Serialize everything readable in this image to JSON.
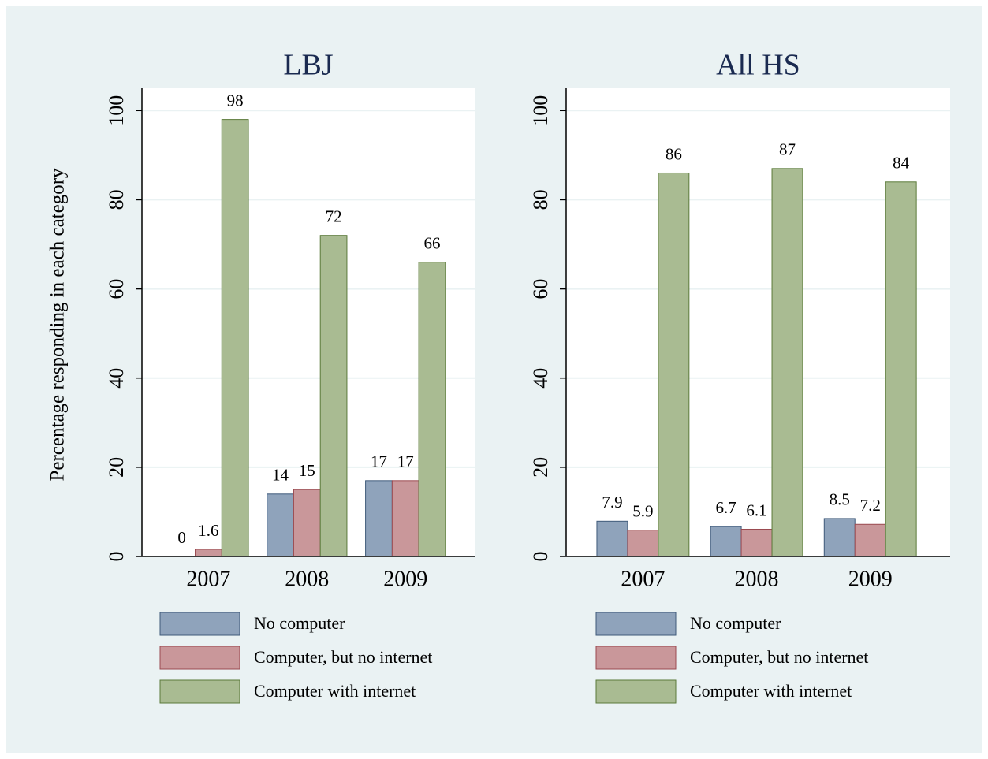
{
  "chart_data": [
    {
      "type": "bar",
      "title": "LBJ",
      "ylabel": "Percentage responding in each category",
      "categories": [
        "2007",
        "2008",
        "2009"
      ],
      "series": [
        {
          "name": "No computer",
          "color": "#8fa3bb",
          "values": [
            0,
            14,
            17
          ]
        },
        {
          "name": "Computer, but no internet",
          "color": "#c9979a",
          "values": [
            1.6,
            15,
            17
          ]
        },
        {
          "name": "Computer with internet",
          "color": "#a9bb92",
          "values": [
            98,
            72,
            66
          ]
        }
      ],
      "ylim": [
        0,
        105
      ],
      "yticks": [
        0,
        20,
        40,
        60,
        80,
        100
      ],
      "grid": true
    },
    {
      "type": "bar",
      "title": "All HS",
      "categories": [
        "2007",
        "2008",
        "2009"
      ],
      "series": [
        {
          "name": "No computer",
          "color": "#8fa3bb",
          "values": [
            7.9,
            6.7,
            8.5
          ]
        },
        {
          "name": "Computer, but no internet",
          "color": "#c9979a",
          "values": [
            5.9,
            6.1,
            7.2
          ]
        },
        {
          "name": "Computer with internet",
          "color": "#a9bb92",
          "values": [
            86,
            87,
            84
          ]
        }
      ],
      "ylim": [
        0,
        105
      ],
      "yticks": [
        0,
        20,
        40,
        60,
        80,
        100
      ],
      "grid": true
    }
  ]
}
